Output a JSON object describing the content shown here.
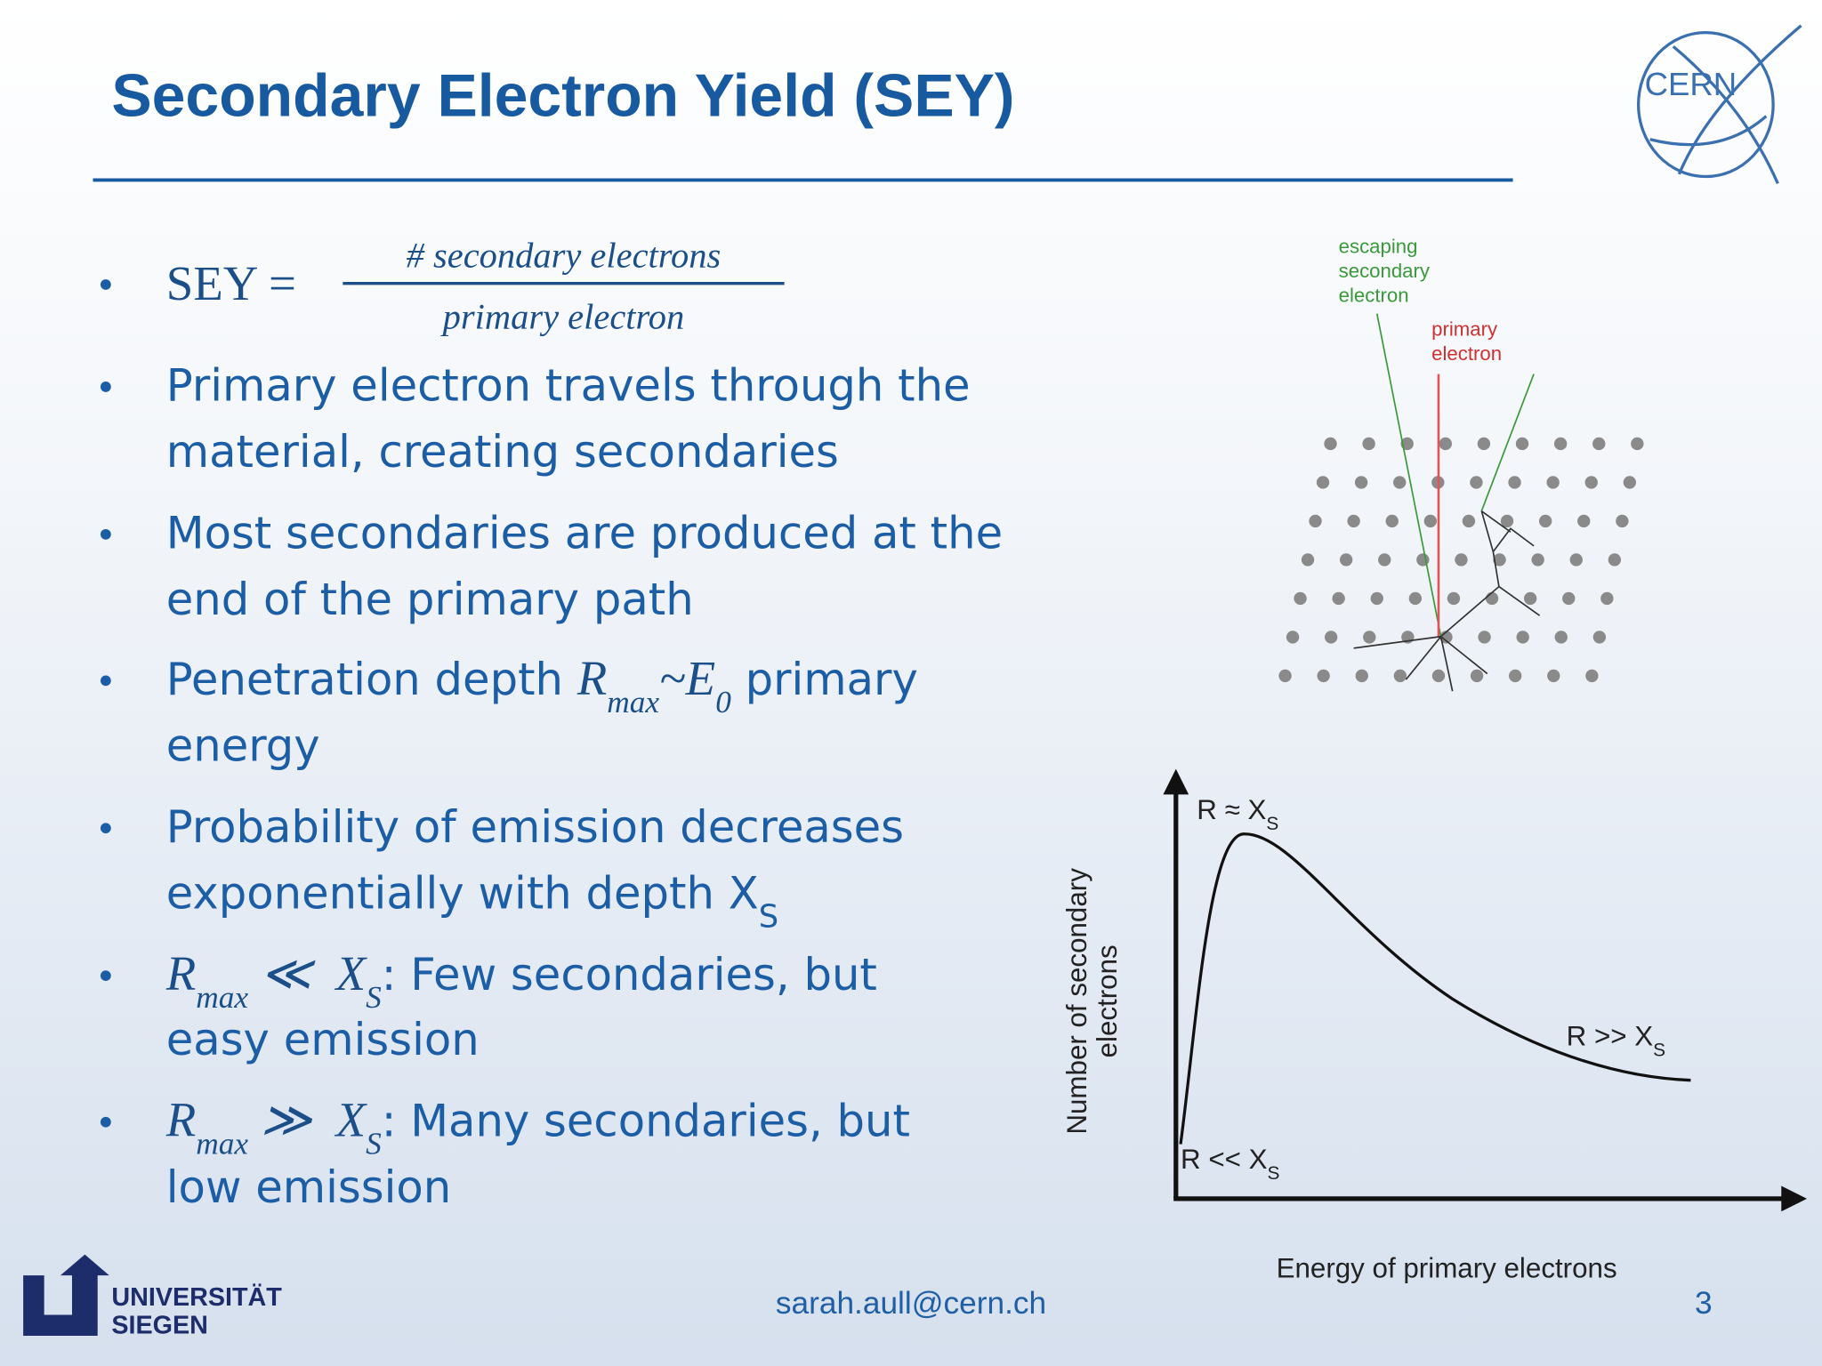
{
  "header": {
    "title": "Secondary Electron Yield (SEY)",
    "logo": "CERN"
  },
  "bullets": [
    {
      "formula": {
        "lhs": "SEY =",
        "numerator": "# secondary electrons",
        "denominator": "primary electron"
      }
    },
    {
      "lines": [
        [
          "Primary electron travels through the"
        ],
        [
          "material, creating secondaries"
        ]
      ]
    },
    {
      "lines": [
        [
          "Most secondaries are produced at the"
        ],
        [
          "end of the primary path"
        ]
      ]
    },
    {
      "lines": [
        [
          "Penetration depth ",
          "R",
          "max",
          "~E",
          "0",
          " primary"
        ],
        [
          "energy"
        ]
      ]
    },
    {
      "lines": [
        [
          "Probability of emission decreases"
        ],
        [
          "exponentially with depth X",
          "S"
        ]
      ]
    },
    {
      "lines": [
        [
          "R",
          "max",
          " ≪  ",
          "X",
          "S",
          ": Few secondaries, but"
        ],
        [
          "easy emission"
        ]
      ]
    },
    {
      "lines": [
        [
          "R",
          "max",
          " ≫  ",
          "X",
          "S",
          ": Many secondaries, but"
        ],
        [
          "low emission"
        ]
      ]
    }
  ],
  "diagram": {
    "secondary_label": [
      "escaping",
      "secondary",
      "electron"
    ],
    "primary_label": [
      "primary",
      "electron"
    ]
  },
  "graph": {
    "y_label": [
      "Number of secondary",
      "electrons"
    ],
    "x_label": "Energy of primary electrons",
    "annotations": [
      [
        "R ≈ X",
        "S"
      ],
      [
        "R >> X",
        "S"
      ],
      [
        "R << X",
        "S"
      ]
    ]
  },
  "footer": {
    "email": "sarah.aull@cern.ch",
    "page": "3",
    "university": [
      "UNIVERSITÄT",
      "SIEGEN"
    ]
  }
}
